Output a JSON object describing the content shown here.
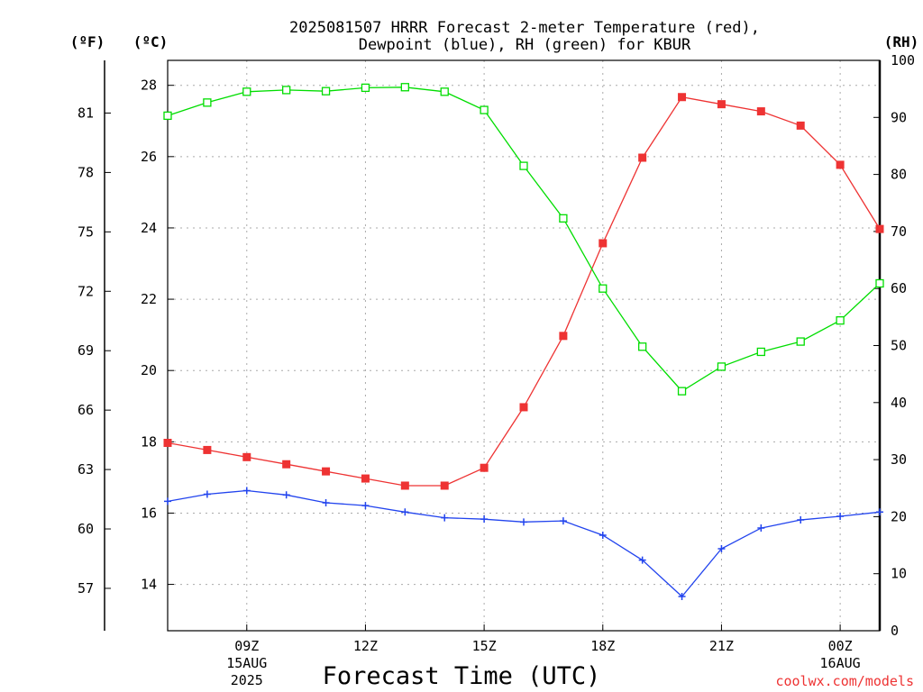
{
  "chart_data": {
    "type": "line",
    "title": "2025081507 HRRR Forecast 2-meter Temperature (red),",
    "subtitle": "Dewpoint (blue), RH (green) for KBUR",
    "xlabel": "Forecast Time (UTC)",
    "units": {
      "fahrenheit": "(ºF)",
      "celsius": "(ºC)",
      "rh": "(RH)"
    },
    "x": [
      7,
      8,
      9,
      10,
      11,
      12,
      13,
      14,
      15,
      16,
      17,
      18,
      19,
      20,
      21,
      22,
      23,
      24,
      25
    ],
    "xlim": [
      7,
      25
    ],
    "x_ticks": [
      {
        "x": 9,
        "label": "09Z",
        "label2": "15AUG",
        "label3": "2025"
      },
      {
        "x": 12,
        "label": "12Z"
      },
      {
        "x": 15,
        "label": "15Z"
      },
      {
        "x": 18,
        "label": "18Z"
      },
      {
        "x": 21,
        "label": "21Z"
      },
      {
        "x": 24,
        "label": "00Z",
        "label2": "16AUG"
      }
    ],
    "y_celsius": {
      "lim": [
        12.7,
        28.7
      ],
      "ticks": [
        "14",
        "16",
        "18",
        "20",
        "22",
        "24",
        "26",
        "28"
      ]
    },
    "y_fahrenheit": {
      "lim": [
        54.86,
        83.66
      ],
      "ticks": [
        "57",
        "60",
        "63",
        "66",
        "69",
        "72",
        "75",
        "78",
        "81"
      ]
    },
    "y_rh": {
      "lim": [
        0,
        100
      ],
      "ticks": [
        "0",
        "10",
        "20",
        "30",
        "40",
        "50",
        "60",
        "70",
        "80",
        "90",
        "100"
      ]
    },
    "grid": true,
    "series": [
      {
        "name": "Temperature",
        "axis": "celsius",
        "color": "#ee3333",
        "marker": "filled-square",
        "values": [
          17.97,
          17.77,
          17.57,
          17.37,
          17.17,
          16.97,
          16.77,
          16.77,
          17.27,
          18.97,
          20.97,
          23.57,
          25.97,
          27.67,
          27.47,
          27.27,
          26.87,
          25.77,
          23.97
        ]
      },
      {
        "name": "Dewpoint",
        "axis": "celsius",
        "color": "#2244ee",
        "marker": "plus",
        "values": [
          16.33,
          16.53,
          16.63,
          16.51,
          16.29,
          16.21,
          16.03,
          15.87,
          15.83,
          15.75,
          15.78,
          15.38,
          14.68,
          13.66,
          15.0,
          15.58,
          15.81,
          15.91,
          16.03
        ]
      },
      {
        "name": "RH",
        "axis": "rh",
        "color": "#00dd00",
        "marker": "open-square",
        "values": [
          90.3,
          92.6,
          94.5,
          94.8,
          94.6,
          95.2,
          95.3,
          94.5,
          91.3,
          81.5,
          72.3,
          60.0,
          49.8,
          42.0,
          46.3,
          48.9,
          50.7,
          54.4,
          60.9
        ]
      }
    ]
  },
  "credit": "coolwx.com/models"
}
